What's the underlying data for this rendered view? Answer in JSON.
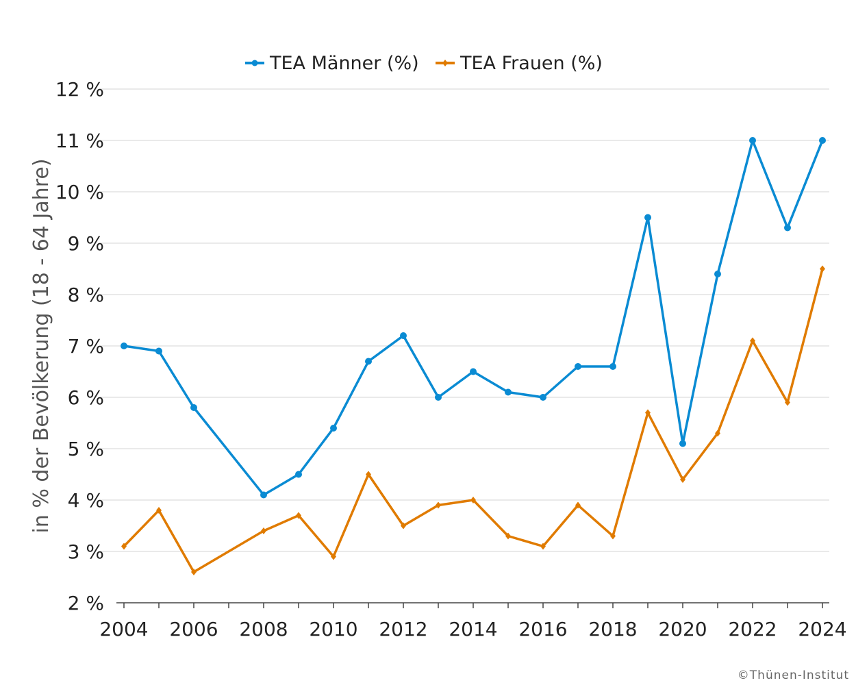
{
  "chart_data": {
    "type": "line",
    "title": "",
    "xlabel": "",
    "ylabel": "in % der Bevölkerung (18 - 64 Jahre)",
    "ylim": [
      2,
      12
    ],
    "yticks": [
      2,
      3,
      4,
      5,
      6,
      7,
      8,
      9,
      10,
      11,
      12
    ],
    "ytick_labels": [
      "2 %",
      "3 %",
      "4 %",
      "5 %",
      "6 %",
      "7 %",
      "8 %",
      "9 %",
      "10 %",
      "11 %",
      "12 %"
    ],
    "xlim": [
      2004,
      2024
    ],
    "xticks": [
      "2004",
      "2006",
      "2008",
      "2010",
      "2012",
      "2014",
      "2016",
      "2018",
      "2020",
      "2022",
      "2024"
    ],
    "grid": "horizontal",
    "legend_position": "top",
    "x": [
      2004,
      2005,
      2006,
      2007,
      2008,
      2009,
      2010,
      2011,
      2012,
      2013,
      2014,
      2015,
      2016,
      2017,
      2018,
      2019,
      2020,
      2021,
      2022,
      2023,
      2024
    ],
    "series": [
      {
        "name": "TEA Männer (%)",
        "color": "#0a8bd3",
        "marker": "circle",
        "values": [
          7.0,
          6.9,
          5.8,
          null,
          4.1,
          4.5,
          5.4,
          6.7,
          7.2,
          6.0,
          6.5,
          6.1,
          6.0,
          6.6,
          6.6,
          9.5,
          5.1,
          8.4,
          11.0,
          9.3,
          11.0
        ]
      },
      {
        "name": "TEA Frauen (%)",
        "color": "#e07b00",
        "marker": "diamond",
        "values": [
          3.1,
          3.8,
          2.6,
          null,
          3.4,
          3.7,
          2.9,
          4.5,
          3.5,
          3.9,
          4.0,
          3.3,
          3.1,
          3.9,
          3.3,
          5.7,
          4.4,
          5.3,
          7.1,
          5.9,
          8.5
        ]
      }
    ]
  },
  "copyright": "©Thünen-Institut"
}
